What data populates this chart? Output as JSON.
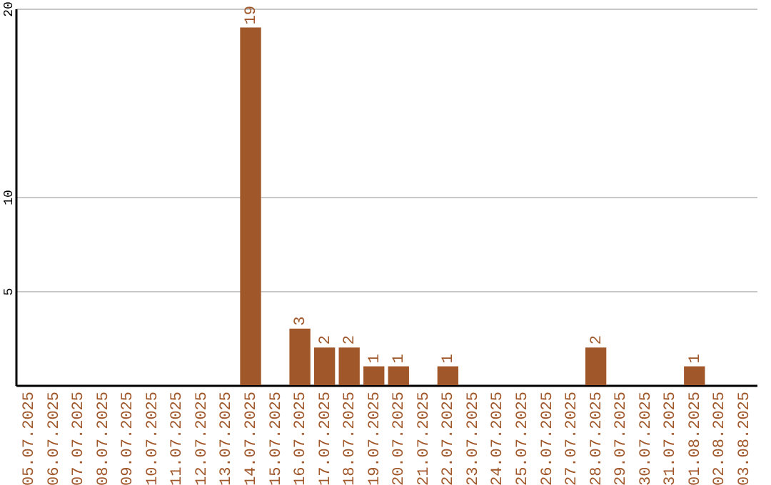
{
  "chart_data": {
    "type": "bar",
    "categories": [
      "05.07.2025",
      "06.07.2025",
      "07.07.2025",
      "08.07.2025",
      "09.07.2025",
      "10.07.2025",
      "11.07.2025",
      "12.07.2025",
      "13.07.2025",
      "14.07.2025",
      "15.07.2025",
      "16.07.2025",
      "17.07.2025",
      "18.07.2025",
      "19.07.2025",
      "20.07.2025",
      "21.07.2025",
      "22.07.2025",
      "23.07.2025",
      "24.07.2025",
      "25.07.2025",
      "26.07.2025",
      "27.07.2025",
      "28.07.2025",
      "29.07.2025",
      "30.07.2025",
      "31.07.2025",
      "01.08.2025",
      "02.08.2025",
      "03.08.2025"
    ],
    "values": [
      0,
      0,
      0,
      0,
      0,
      0,
      0,
      0,
      0,
      19,
      0,
      3,
      2,
      2,
      1,
      1,
      0,
      1,
      0,
      0,
      0,
      0,
      0,
      2,
      0,
      0,
      0,
      1,
      0,
      0
    ],
    "value_labels": [
      null,
      null,
      null,
      null,
      null,
      null,
      null,
      null,
      null,
      "19",
      null,
      "3",
      "2",
      "2",
      "1",
      "1",
      null,
      "1",
      null,
      null,
      null,
      null,
      null,
      "2",
      null,
      null,
      null,
      "1",
      null,
      null
    ],
    "color": "#a0572a",
    "ylim": [
      0,
      20
    ],
    "yticks": [
      5,
      10,
      20
    ],
    "grid": "y"
  }
}
